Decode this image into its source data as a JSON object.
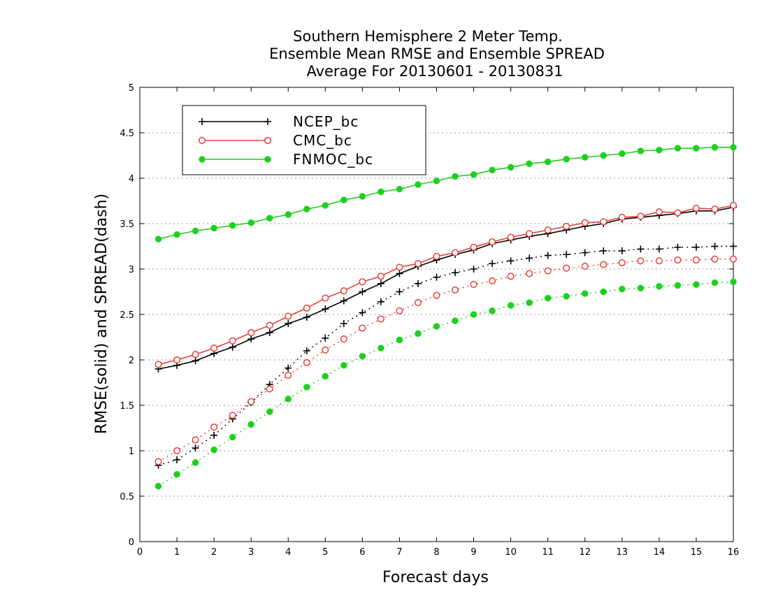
{
  "chart_data": {
    "type": "line",
    "title": [
      "Southern Hemisphere 2 Meter Temp.",
      "Ensemble Mean RMSE and Ensemble SPREAD",
      "Average For 20130601 - 20130831"
    ],
    "xlabel": "Forecast days",
    "ylabel": "RMSE(solid) and SPREAD(dash)",
    "xlim": [
      0,
      16
    ],
    "ylim": [
      0,
      5
    ],
    "xticks": [
      "0",
      "1",
      "2",
      "3",
      "4",
      "5",
      "6",
      "7",
      "8",
      "9",
      "10",
      "11",
      "12",
      "13",
      "14",
      "15",
      "16"
    ],
    "yticks": [
      "0",
      "0.5",
      "1",
      "1.5",
      "2",
      "2.5",
      "3",
      "3.5",
      "4",
      "4.5",
      "5"
    ],
    "grid": "horizontal-dotted",
    "legend_position": "top-left",
    "x": [
      0.5,
      1,
      1.5,
      2,
      2.5,
      3,
      3.5,
      4,
      4.5,
      5,
      5.5,
      6,
      6.5,
      7,
      7.5,
      8,
      8.5,
      9,
      9.5,
      10,
      10.5,
      11,
      11.5,
      12,
      12.5,
      13,
      13.5,
      14,
      14.5,
      15,
      15.5,
      16
    ],
    "series": [
      {
        "name": "NCEP_bc",
        "color": "#000000",
        "marker": "plus",
        "style": "solid",
        "values": [
          1.9,
          1.94,
          1.99,
          2.07,
          2.14,
          2.23,
          2.3,
          2.4,
          2.47,
          2.56,
          2.65,
          2.75,
          2.84,
          2.95,
          3.03,
          3.1,
          3.16,
          3.21,
          3.28,
          3.32,
          3.36,
          3.39,
          3.43,
          3.47,
          3.5,
          3.55,
          3.57,
          3.59,
          3.61,
          3.64,
          3.64,
          3.68
        ]
      },
      {
        "name": "CMC_bc",
        "color": "#e8403c",
        "marker": "circle-open",
        "style": "solid",
        "values": [
          1.95,
          2.0,
          2.06,
          2.13,
          2.21,
          2.3,
          2.38,
          2.48,
          2.57,
          2.68,
          2.76,
          2.86,
          2.92,
          3.02,
          3.06,
          3.14,
          3.18,
          3.24,
          3.3,
          3.35,
          3.39,
          3.43,
          3.47,
          3.51,
          3.52,
          3.57,
          3.58,
          3.63,
          3.62,
          3.67,
          3.66,
          3.7
        ]
      },
      {
        "name": "FNMOC_bc",
        "color": "#1ed01e",
        "marker": "circle-filled",
        "style": "solid",
        "values": [
          3.33,
          3.38,
          3.42,
          3.45,
          3.48,
          3.51,
          3.56,
          3.6,
          3.66,
          3.7,
          3.76,
          3.8,
          3.85,
          3.88,
          3.93,
          3.97,
          4.02,
          4.04,
          4.09,
          4.12,
          4.16,
          4.18,
          4.21,
          4.23,
          4.25,
          4.27,
          4.3,
          4.31,
          4.33,
          4.33,
          4.34,
          4.34
        ]
      },
      {
        "name": "NCEP_bc",
        "color": "#000000",
        "marker": "plus",
        "style": "dash",
        "values": [
          0.84,
          0.9,
          1.03,
          1.17,
          1.35,
          1.53,
          1.73,
          1.91,
          2.1,
          2.24,
          2.4,
          2.52,
          2.64,
          2.75,
          2.84,
          2.91,
          2.96,
          3.0,
          3.06,
          3.09,
          3.12,
          3.15,
          3.16,
          3.18,
          3.2,
          3.2,
          3.22,
          3.22,
          3.24,
          3.24,
          3.25,
          3.25
        ]
      },
      {
        "name": "CMC_bc",
        "color": "#e8403c",
        "marker": "circle-open",
        "style": "dash",
        "values": [
          0.88,
          1.0,
          1.12,
          1.26,
          1.39,
          1.54,
          1.68,
          1.83,
          1.97,
          2.11,
          2.23,
          2.35,
          2.45,
          2.54,
          2.63,
          2.71,
          2.77,
          2.83,
          2.87,
          2.92,
          2.95,
          2.98,
          3.01,
          3.03,
          3.05,
          3.07,
          3.09,
          3.09,
          3.1,
          3.1,
          3.11,
          3.11
        ]
      },
      {
        "name": "FNMOC_bc",
        "color": "#1ed01e",
        "marker": "circle-filled",
        "style": "dash",
        "values": [
          0.61,
          0.74,
          0.87,
          1.01,
          1.15,
          1.29,
          1.43,
          1.57,
          1.7,
          1.82,
          1.94,
          2.04,
          2.13,
          2.22,
          2.29,
          2.37,
          2.43,
          2.5,
          2.54,
          2.6,
          2.63,
          2.68,
          2.7,
          2.73,
          2.75,
          2.78,
          2.79,
          2.81,
          2.82,
          2.83,
          2.85,
          2.86
        ]
      }
    ],
    "legend": [
      {
        "name": "NCEP_bc",
        "color": "#000000",
        "marker": "plus"
      },
      {
        "name": "CMC_bc",
        "color": "#e8403c",
        "marker": "circle-open"
      },
      {
        "name": "FNMOC_bc",
        "color": "#1ed01e",
        "marker": "circle-filled"
      }
    ]
  }
}
